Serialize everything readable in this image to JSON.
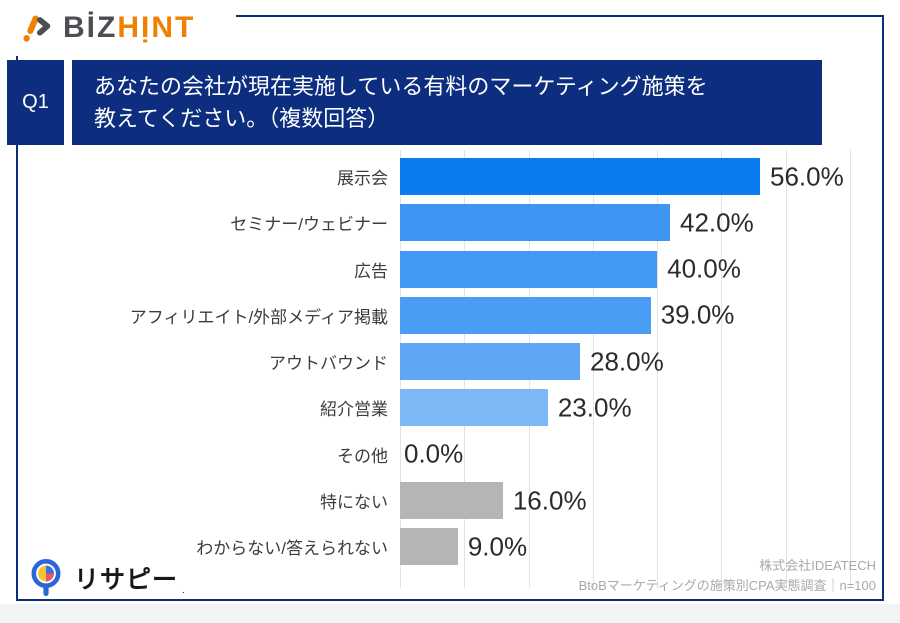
{
  "brand": {
    "biz": "BİZ",
    "hint": "HỊNT",
    "dark_color": "#4d4e53",
    "orange_color": "#ee8100"
  },
  "question": {
    "label": "Q1",
    "line1": "あなたの会社が現在実施している有料のマーケティング施策を",
    "line2": "教えてください。（複数回答）",
    "banner_color": "#0d2e7f"
  },
  "chart_data": {
    "type": "bar",
    "orientation": "horizontal",
    "title": "あなたの会社が現在実施している有料のマーケティング施策を教えてください。（複数回答）",
    "unit": "%",
    "categories": [
      "展示会",
      "セミナー/ウェビナー",
      "広告",
      "アフィリエイト/外部メディア掲載",
      "アウトバウンド",
      "紹介営業",
      "その他",
      "特にない",
      "わからない/答えられない"
    ],
    "values": [
      56.0,
      42.0,
      40.0,
      39.0,
      28.0,
      23.0,
      0.0,
      16.0,
      9.0
    ],
    "value_labels": [
      "56.0%",
      "42.0%",
      "40.0%",
      "39.0%",
      "28.0%",
      "23.0%",
      "16.0%",
      "9.0%"
    ],
    "bar_colors": [
      "#0b7cf0",
      "#3e96f3",
      "#4499f4",
      "#4a9cf4",
      "#5fa7f5",
      "#7eb9f7",
      "#b5b5b5",
      "#b5b5b5",
      "#b5b5b5"
    ],
    "xlim": [
      0,
      70
    ],
    "gridline_interval": 10,
    "grid": true,
    "legend": false
  },
  "footer": {
    "research_logo_text": "リサピー",
    "research_logo_mark": ".",
    "credit_company": "株式会社IDEATECH",
    "credit_survey": "BtoBマーケティングの施策別CPA実態調査｜n=100"
  },
  "colors": {
    "navy": "#0d2e7f",
    "bar_primary": "#0b7cf0",
    "bar_gray": "#b5b5b5",
    "gridline": "#e3e3e3"
  }
}
